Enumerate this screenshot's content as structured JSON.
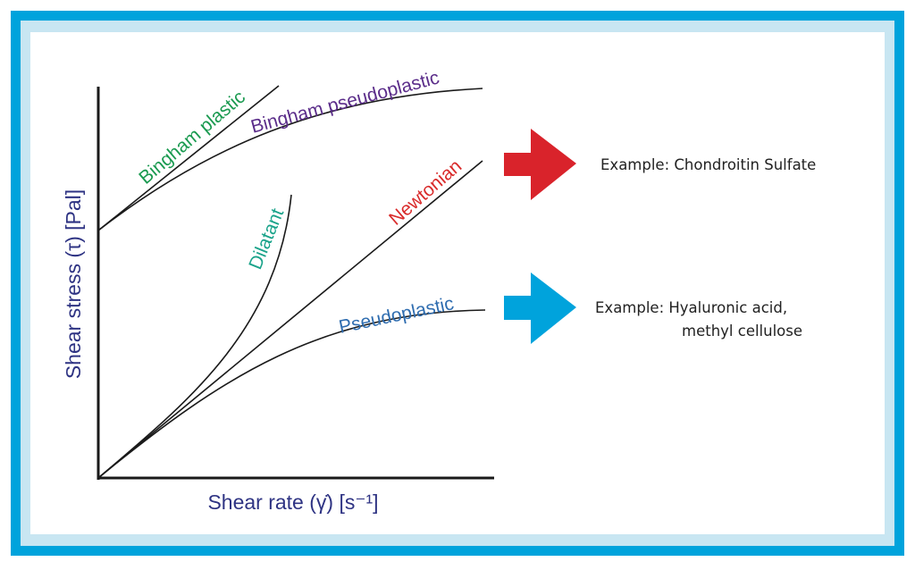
{
  "colors": {
    "frame_outer": "#00a3dc",
    "frame_inner": "#c8e6f2",
    "bingham_plastic": "#1a9a50",
    "bingham_pseudoplastic": "#5b2d8a",
    "dilatant": "#1aa38a",
    "newtonian": "#d92b2b",
    "pseudoplastic": "#2f6db0",
    "arrow_red": "#d9232b",
    "arrow_blue": "#00a3dc",
    "axis_label": "#2e3383"
  },
  "axes": {
    "y_label": "Shear stress (τ) [Pal]",
    "x_label": "Shear rate (γ̇) [s⁻¹]"
  },
  "curves": {
    "bingham_plastic": "Bingham plastic",
    "bingham_pseudoplastic": "Bingham pseudoplastic",
    "dilatant": "Dilatant",
    "newtonian": "Newtonian",
    "pseudoplastic": "Pseudoplastic"
  },
  "examples": {
    "red_arrow_text": "Example: Chondroitin Sulfate",
    "blue_arrow_line1": "Example: Hyaluronic acid,",
    "blue_arrow_line2": "methyl cellulose"
  }
}
